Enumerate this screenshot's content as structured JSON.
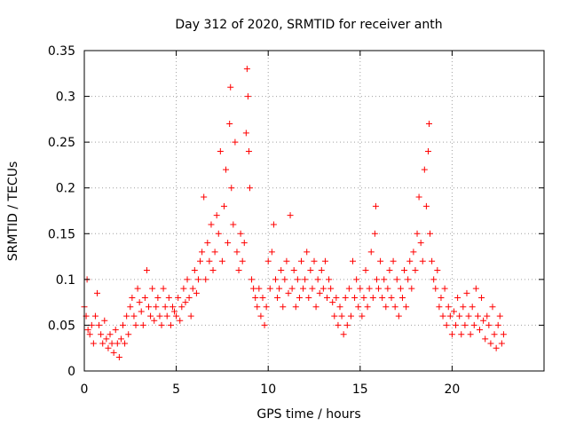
{
  "chart_data": {
    "type": "scatter",
    "title": "Day 312 of 2020, SRMTID for receiver anth",
    "xlabel": "GPS time / hours",
    "ylabel": "SRMTID / TECUs",
    "xlim": [
      0,
      25
    ],
    "ylim": [
      0,
      0.35
    ],
    "xticks": [
      0,
      5,
      10,
      15,
      20
    ],
    "yticks": [
      0,
      0.05,
      0.1,
      0.15,
      0.2,
      0.25,
      0.3,
      0.35
    ],
    "xtick_labels": [
      "0",
      "5",
      "10",
      "15",
      "20"
    ],
    "ytick_labels": [
      "0",
      "0.05",
      "0.1",
      "0.15",
      "0.2",
      "0.25",
      "0.3",
      "0.35"
    ],
    "grid": true,
    "marker": "+",
    "color": "#ff0000",
    "series": [
      {
        "name": "SRMTID",
        "points": [
          [
            0.0,
            0.07
          ],
          [
            0.1,
            0.06
          ],
          [
            0.15,
            0.1
          ],
          [
            0.2,
            0.045
          ],
          [
            0.3,
            0.04
          ],
          [
            0.4,
            0.05
          ],
          [
            0.5,
            0.03
          ],
          [
            0.6,
            0.06
          ],
          [
            0.7,
            0.085
          ],
          [
            0.8,
            0.05
          ],
          [
            0.9,
            0.04
          ],
          [
            1.0,
            0.03
          ],
          [
            1.1,
            0.055
          ],
          [
            1.2,
            0.035
          ],
          [
            1.3,
            0.025
          ],
          [
            1.4,
            0.04
          ],
          [
            1.5,
            0.03
          ],
          [
            1.6,
            0.02
          ],
          [
            1.7,
            0.045
          ],
          [
            1.8,
            0.03
          ],
          [
            1.9,
            0.015
          ],
          [
            2.0,
            0.035
          ],
          [
            2.1,
            0.05
          ],
          [
            2.2,
            0.03
          ],
          [
            2.3,
            0.06
          ],
          [
            2.4,
            0.04
          ],
          [
            2.5,
            0.07
          ],
          [
            2.6,
            0.08
          ],
          [
            2.7,
            0.06
          ],
          [
            2.8,
            0.05
          ],
          [
            2.9,
            0.09
          ],
          [
            3.0,
            0.075
          ],
          [
            3.1,
            0.065
          ],
          [
            3.2,
            0.05
          ],
          [
            3.3,
            0.08
          ],
          [
            3.4,
            0.11
          ],
          [
            3.5,
            0.07
          ],
          [
            3.6,
            0.06
          ],
          [
            3.7,
            0.09
          ],
          [
            3.8,
            0.055
          ],
          [
            3.9,
            0.07
          ],
          [
            4.0,
            0.08
          ],
          [
            4.1,
            0.06
          ],
          [
            4.2,
            0.05
          ],
          [
            4.3,
            0.09
          ],
          [
            4.4,
            0.07
          ],
          [
            4.5,
            0.06
          ],
          [
            4.6,
            0.08
          ],
          [
            4.7,
            0.05
          ],
          [
            4.8,
            0.07
          ],
          [
            4.9,
            0.065
          ],
          [
            5.0,
            0.06
          ],
          [
            5.1,
            0.08
          ],
          [
            5.2,
            0.055
          ],
          [
            5.3,
            0.07
          ],
          [
            5.4,
            0.09
          ],
          [
            5.5,
            0.075
          ],
          [
            5.6,
            0.1
          ],
          [
            5.7,
            0.08
          ],
          [
            5.8,
            0.06
          ],
          [
            5.9,
            0.09
          ],
          [
            6.0,
            0.11
          ],
          [
            6.1,
            0.085
          ],
          [
            6.2,
            0.1
          ],
          [
            6.3,
            0.12
          ],
          [
            6.4,
            0.13
          ],
          [
            6.5,
            0.19
          ],
          [
            6.6,
            0.1
          ],
          [
            6.7,
            0.14
          ],
          [
            6.8,
            0.12
          ],
          [
            6.9,
            0.16
          ],
          [
            7.0,
            0.11
          ],
          [
            7.1,
            0.13
          ],
          [
            7.2,
            0.17
          ],
          [
            7.3,
            0.15
          ],
          [
            7.4,
            0.24
          ],
          [
            7.5,
            0.12
          ],
          [
            7.6,
            0.18
          ],
          [
            7.7,
            0.22
          ],
          [
            7.8,
            0.14
          ],
          [
            7.9,
            0.27
          ],
          [
            7.95,
            0.31
          ],
          [
            8.0,
            0.2
          ],
          [
            8.1,
            0.16
          ],
          [
            8.2,
            0.25
          ],
          [
            8.3,
            0.13
          ],
          [
            8.4,
            0.11
          ],
          [
            8.5,
            0.15
          ],
          [
            8.6,
            0.12
          ],
          [
            8.7,
            0.14
          ],
          [
            8.8,
            0.26
          ],
          [
            8.85,
            0.33
          ],
          [
            8.9,
            0.3
          ],
          [
            8.95,
            0.24
          ],
          [
            9.0,
            0.2
          ],
          [
            9.1,
            0.1
          ],
          [
            9.2,
            0.09
          ],
          [
            9.3,
            0.08
          ],
          [
            9.4,
            0.07
          ],
          [
            9.5,
            0.09
          ],
          [
            9.6,
            0.06
          ],
          [
            9.7,
            0.08
          ],
          [
            9.8,
            0.05
          ],
          [
            9.9,
            0.07
          ],
          [
            10.0,
            0.12
          ],
          [
            10.1,
            0.09
          ],
          [
            10.2,
            0.13
          ],
          [
            10.3,
            0.16
          ],
          [
            10.4,
            0.1
          ],
          [
            10.5,
            0.08
          ],
          [
            10.6,
            0.09
          ],
          [
            10.7,
            0.11
          ],
          [
            10.8,
            0.07
          ],
          [
            10.9,
            0.1
          ],
          [
            11.0,
            0.12
          ],
          [
            11.1,
            0.085
          ],
          [
            11.2,
            0.17
          ],
          [
            11.3,
            0.09
          ],
          [
            11.4,
            0.11
          ],
          [
            11.5,
            0.07
          ],
          [
            11.6,
            0.1
          ],
          [
            11.7,
            0.08
          ],
          [
            11.8,
            0.12
          ],
          [
            11.9,
            0.09
          ],
          [
            12.0,
            0.1
          ],
          [
            12.1,
            0.13
          ],
          [
            12.2,
            0.08
          ],
          [
            12.3,
            0.11
          ],
          [
            12.4,
            0.09
          ],
          [
            12.5,
            0.12
          ],
          [
            12.6,
            0.07
          ],
          [
            12.7,
            0.1
          ],
          [
            12.8,
            0.085
          ],
          [
            12.9,
            0.11
          ],
          [
            13.0,
            0.09
          ],
          [
            13.1,
            0.12
          ],
          [
            13.2,
            0.08
          ],
          [
            13.3,
            0.1
          ],
          [
            13.4,
            0.09
          ],
          [
            13.5,
            0.075
          ],
          [
            13.6,
            0.06
          ],
          [
            13.7,
            0.08
          ],
          [
            13.8,
            0.05
          ],
          [
            13.9,
            0.07
          ],
          [
            14.0,
            0.06
          ],
          [
            14.1,
            0.04
          ],
          [
            14.2,
            0.08
          ],
          [
            14.3,
            0.05
          ],
          [
            14.4,
            0.09
          ],
          [
            14.5,
            0.06
          ],
          [
            14.6,
            0.12
          ],
          [
            14.7,
            0.08
          ],
          [
            14.8,
            0.1
          ],
          [
            14.9,
            0.07
          ],
          [
            15.0,
            0.09
          ],
          [
            15.1,
            0.06
          ],
          [
            15.2,
            0.08
          ],
          [
            15.3,
            0.11
          ],
          [
            15.4,
            0.07
          ],
          [
            15.5,
            0.09
          ],
          [
            15.6,
            0.13
          ],
          [
            15.7,
            0.08
          ],
          [
            15.8,
            0.15
          ],
          [
            15.85,
            0.18
          ],
          [
            15.9,
            0.1
          ],
          [
            16.0,
            0.09
          ],
          [
            16.1,
            0.12
          ],
          [
            16.2,
            0.08
          ],
          [
            16.3,
            0.1
          ],
          [
            16.4,
            0.07
          ],
          [
            16.5,
            0.09
          ],
          [
            16.6,
            0.11
          ],
          [
            16.7,
            0.08
          ],
          [
            16.8,
            0.12
          ],
          [
            16.9,
            0.07
          ],
          [
            17.0,
            0.1
          ],
          [
            17.1,
            0.06
          ],
          [
            17.2,
            0.09
          ],
          [
            17.3,
            0.08
          ],
          [
            17.4,
            0.11
          ],
          [
            17.5,
            0.07
          ],
          [
            17.6,
            0.1
          ],
          [
            17.7,
            0.12
          ],
          [
            17.8,
            0.09
          ],
          [
            17.9,
            0.13
          ],
          [
            18.0,
            0.11
          ],
          [
            18.1,
            0.15
          ],
          [
            18.2,
            0.19
          ],
          [
            18.3,
            0.14
          ],
          [
            18.4,
            0.12
          ],
          [
            18.5,
            0.22
          ],
          [
            18.6,
            0.18
          ],
          [
            18.7,
            0.24
          ],
          [
            18.75,
            0.27
          ],
          [
            18.8,
            0.15
          ],
          [
            18.9,
            0.12
          ],
          [
            19.0,
            0.1
          ],
          [
            19.1,
            0.09
          ],
          [
            19.2,
            0.11
          ],
          [
            19.3,
            0.07
          ],
          [
            19.4,
            0.08
          ],
          [
            19.5,
            0.06
          ],
          [
            19.6,
            0.09
          ],
          [
            19.7,
            0.05
          ],
          [
            19.8,
            0.07
          ],
          [
            19.9,
            0.06
          ],
          [
            20.0,
            0.04
          ],
          [
            20.1,
            0.065
          ],
          [
            20.2,
            0.05
          ],
          [
            20.3,
            0.08
          ],
          [
            20.4,
            0.06
          ],
          [
            20.5,
            0.04
          ],
          [
            20.6,
            0.07
          ],
          [
            20.7,
            0.05
          ],
          [
            20.8,
            0.085
          ],
          [
            20.9,
            0.06
          ],
          [
            21.0,
            0.04
          ],
          [
            21.1,
            0.07
          ],
          [
            21.2,
            0.05
          ],
          [
            21.3,
            0.09
          ],
          [
            21.4,
            0.06
          ],
          [
            21.5,
            0.045
          ],
          [
            21.6,
            0.08
          ],
          [
            21.7,
            0.055
          ],
          [
            21.8,
            0.035
          ],
          [
            21.9,
            0.06
          ],
          [
            22.0,
            0.05
          ],
          [
            22.1,
            0.03
          ],
          [
            22.2,
            0.07
          ],
          [
            22.3,
            0.04
          ],
          [
            22.4,
            0.025
          ],
          [
            22.5,
            0.05
          ],
          [
            22.6,
            0.06
          ],
          [
            22.7,
            0.03
          ],
          [
            22.8,
            0.04
          ]
        ]
      }
    ]
  }
}
